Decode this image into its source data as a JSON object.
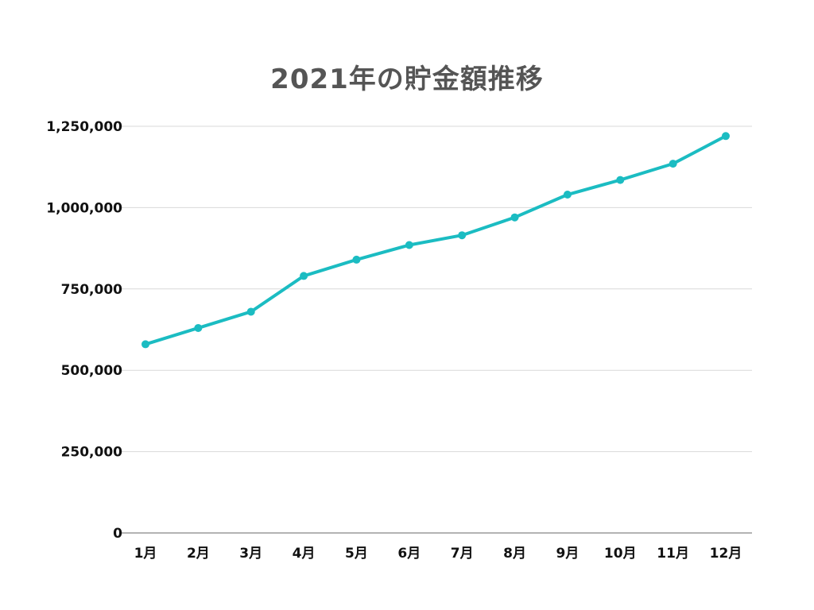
{
  "chart_data": {
    "type": "line",
    "title": "2021年の貯金額推移",
    "xlabel": "",
    "ylabel": "",
    "categories": [
      "1月",
      "2月",
      "3月",
      "4月",
      "5月",
      "6月",
      "7月",
      "8月",
      "9月",
      "10月",
      "11月",
      "12月"
    ],
    "series": [
      {
        "values": [
          580000,
          630000,
          680000,
          790000,
          840000,
          885000,
          915000,
          970000,
          1040000,
          1085000,
          1135000,
          1220000
        ],
        "color": "#1bbcc2"
      }
    ],
    "ylim": [
      0,
      1250000
    ],
    "yticks": [
      0,
      250000,
      500000,
      750000,
      1000000,
      1250000
    ],
    "ytick_labels": [
      "0",
      "250,000",
      "500,000",
      "750,000",
      "1,000,000",
      "1,250,000"
    ],
    "grid": true,
    "legend": "none"
  }
}
